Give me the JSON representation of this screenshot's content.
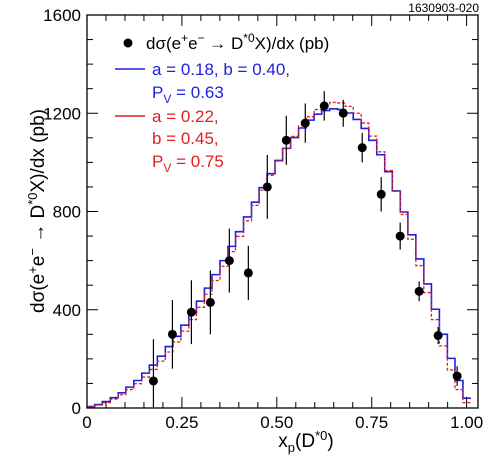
{
  "figure_id": "1630903-020",
  "chart_data": {
    "type": "line",
    "xlim": [
      0,
      1.03
    ],
    "ylim": [
      0,
      1600
    ],
    "xticks": [
      0,
      0.25,
      0.5,
      0.75,
      1.0
    ],
    "xtick_labels": [
      "0",
      "0.25",
      "0.50",
      "0.75",
      "1.00"
    ],
    "yticks": [
      0,
      400,
      800,
      1200,
      1600
    ],
    "ytick_labels": [
      "0",
      "400",
      "800",
      "1200",
      "1600"
    ],
    "xlabel": {
      "main": "x",
      "sub": "p",
      "rest": "(D",
      "sup": "*0",
      "close": ")"
    },
    "ylabel": {
      "a": "dσ(e",
      "sup1": "+",
      "b": "e",
      "sup2": "−",
      "c": " → D",
      "sup3": "*0",
      "d": "X)/dx (pb)"
    },
    "grid": false,
    "legend_position": "top-left",
    "legend": {
      "data": {
        "text": "dσ(e",
        "sup1": "+",
        "t2": "e",
        "sup2": "−",
        "t3": " → D",
        "sup3": "*0",
        "t4": "X)/dx (pb)",
        "color": "#000000"
      },
      "blue": {
        "line1": "a = 0.18, b = 0.40,",
        "line2_pre": "P",
        "line2_sub": "V",
        "line2_post": " = 0.63",
        "color": "#1f1fe0"
      },
      "red": {
        "line1": "a = 0.22,",
        "line2": "b = 0.45,",
        "line3_pre": "P",
        "line3_sub": "V",
        "line3_post": " = 0.75",
        "color": "#e02020"
      }
    },
    "series": [
      {
        "label": "dσ(e+e− → D*0X)/dx (pb)",
        "kind": "points",
        "color": "#000000",
        "x": [
          0.175,
          0.225,
          0.275,
          0.325,
          0.375,
          0.425,
          0.475,
          0.525,
          0.575,
          0.625,
          0.675,
          0.725,
          0.775,
          0.825,
          0.875,
          0.925,
          0.975
        ],
        "y": [
          110,
          300,
          390,
          430,
          600,
          550,
          900,
          1090,
          1160,
          1230,
          1200,
          1060,
          870,
          700,
          475,
          295,
          130
        ],
        "err": [
          170,
          140,
          130,
          130,
          130,
          110,
          130,
          100,
          80,
          60,
          55,
          60,
          70,
          55,
          40,
          35,
          40
        ]
      },
      {
        "label": "a = 0.18, b = 0.40, PV = 0.63",
        "kind": "step",
        "color": "#1f1fe0",
        "bin_width": 0.0206,
        "x": [
          0.01,
          0.03,
          0.051,
          0.072,
          0.092,
          0.113,
          0.134,
          0.154,
          0.175,
          0.196,
          0.216,
          0.237,
          0.258,
          0.278,
          0.299,
          0.319,
          0.34,
          0.361,
          0.381,
          0.402,
          0.423,
          0.443,
          0.464,
          0.485,
          0.505,
          0.526,
          0.547,
          0.567,
          0.588,
          0.608,
          0.629,
          0.65,
          0.67,
          0.691,
          0.712,
          0.732,
          0.753,
          0.774,
          0.794,
          0.815,
          0.835,
          0.856,
          0.877,
          0.897,
          0.918,
          0.939,
          0.959,
          0.98,
          1.001
        ],
        "y": [
          6,
          14,
          26,
          42,
          62,
          85,
          112,
          142,
          175,
          211,
          250,
          292,
          337,
          385,
          435,
          488,
          543,
          600,
          658,
          718,
          778,
          838,
          897,
          954,
          1008,
          1057,
          1101,
          1140,
          1172,
          1196,
          1211,
          1218,
          1215,
          1201,
          1175,
          1138,
          1090,
          1031,
          962,
          884,
          798,
          705,
          607,
          505,
          402,
          300,
          202,
          112,
          40
        ]
      },
      {
        "label": "a = 0.22, b = 0.45, PV = 0.75",
        "kind": "step",
        "color": "#e02020",
        "dashed": true,
        "bin_width": 0.0206,
        "x": [
          0.01,
          0.03,
          0.051,
          0.072,
          0.092,
          0.113,
          0.134,
          0.154,
          0.175,
          0.196,
          0.216,
          0.237,
          0.258,
          0.278,
          0.299,
          0.319,
          0.34,
          0.361,
          0.381,
          0.402,
          0.423,
          0.443,
          0.464,
          0.485,
          0.505,
          0.526,
          0.547,
          0.567,
          0.588,
          0.608,
          0.629,
          0.65,
          0.67,
          0.691,
          0.712,
          0.732,
          0.753,
          0.774,
          0.794,
          0.815,
          0.835,
          0.856,
          0.877,
          0.897,
          0.918,
          0.939,
          0.959,
          0.98,
          1.001
        ],
        "y": [
          5,
          12,
          22,
          36,
          54,
          75,
          99,
          126,
          157,
          191,
          228,
          269,
          313,
          360,
          410,
          463,
          519,
          577,
          637,
          699,
          762,
          825,
          887,
          947,
          1005,
          1058,
          1106,
          1149,
          1186,
          1215,
          1235,
          1244,
          1242,
          1228,
          1200,
          1160,
          1107,
          1043,
          967,
          882,
          788,
          687,
          580,
          470,
          360,
          253,
          155,
          75,
          22
        ]
      }
    ]
  }
}
